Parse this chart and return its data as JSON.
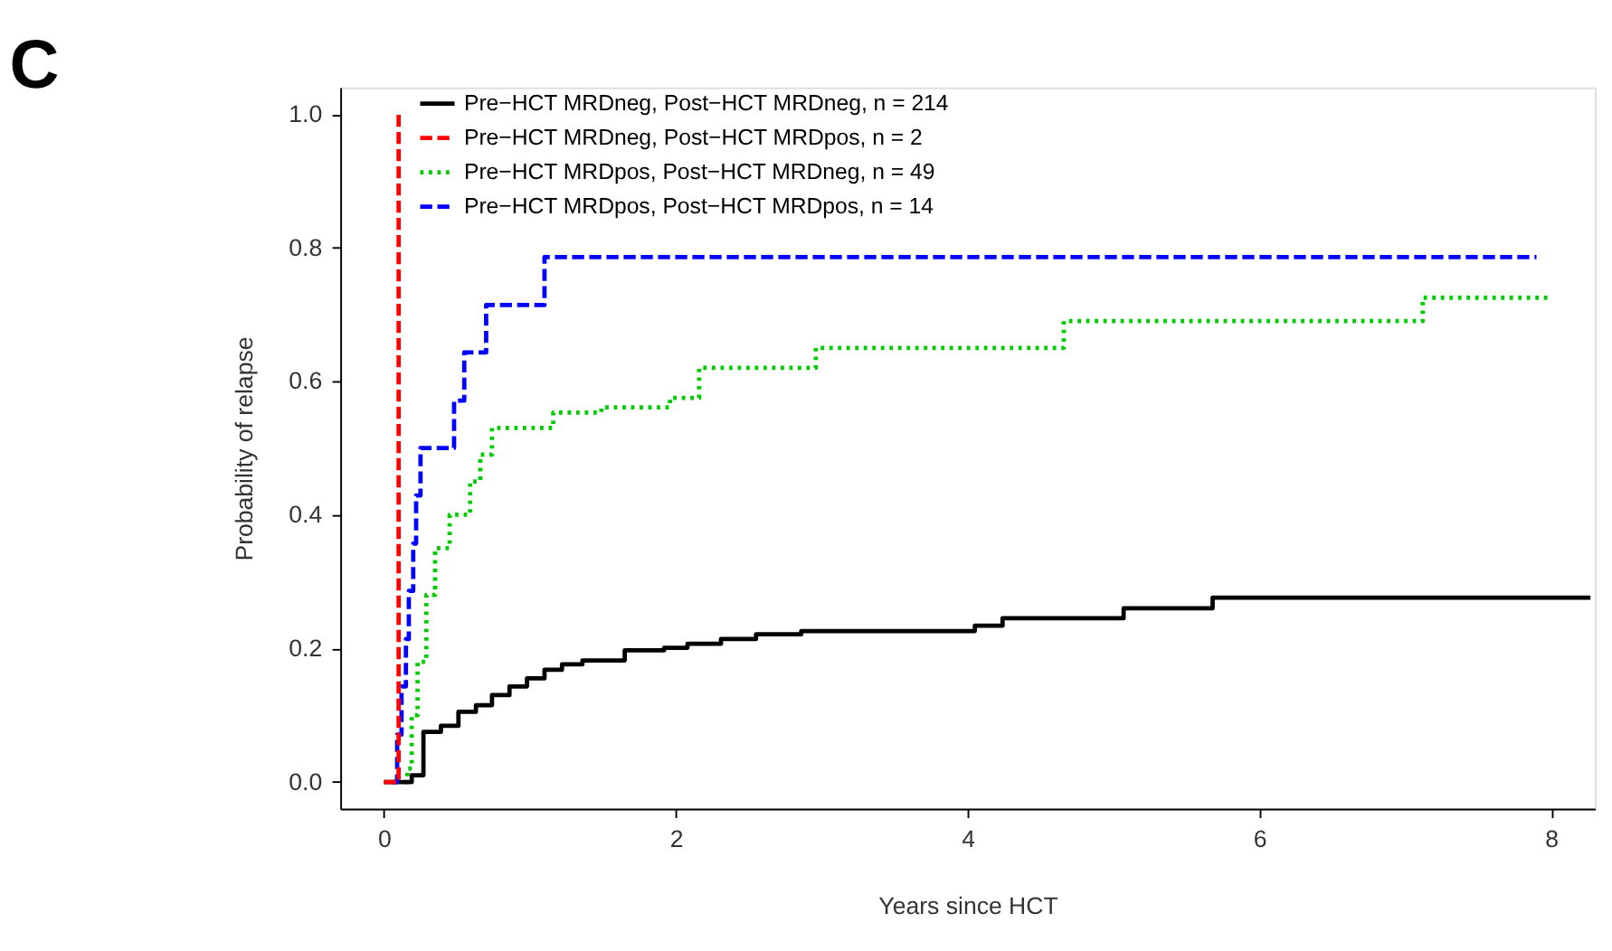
{
  "chart_data": {
    "type": "step",
    "title": "C",
    "xlabel": "Years since HCT",
    "ylabel": "Probability of relapse",
    "xlim": [
      -0.3,
      8.3
    ],
    "xticks": [
      0,
      2,
      4,
      6,
      8
    ],
    "ylim": [
      -0.04,
      1.04
    ],
    "yticks": [
      {
        "value": 0,
        "label": "0.0"
      },
      {
        "value": 0.2,
        "label": "0.2"
      },
      {
        "value": 0.4,
        "label": "0.4"
      },
      {
        "value": 0.6,
        "label": "0.6"
      },
      {
        "value": 0.8,
        "label": "0.8"
      },
      {
        "value": 1,
        "label": "1.0"
      }
    ],
    "grid": false,
    "legend": "top left",
    "marker": "none",
    "series": [
      {
        "name": "Pre−HCT MRDneg, Post−HCT MRDneg, n = 214",
        "color": "#000000",
        "line_style": "solid",
        "x": [
          0,
          0.19,
          0.27,
          0.39,
          0.51,
          0.63,
          0.74,
          0.86,
          0.98,
          1.1,
          1.22,
          1.36,
          1.65,
          1.92,
          2.08,
          2.31,
          2.55,
          2.86,
          4.05,
          4.24,
          5.07,
          5.68,
          8.27
        ],
        "values": [
          0,
          0.01,
          0.075,
          0.084,
          0.105,
          0.115,
          0.13,
          0.143,
          0.155,
          0.168,
          0.176,
          0.182,
          0.197,
          0.201,
          0.207,
          0.214,
          0.221,
          0.226,
          0.234,
          0.245,
          0.26,
          0.276,
          0.276
        ]
      },
      {
        "name": "Pre−HCT MRDneg, Post−HCT MRDpos, n = 2",
        "color": "#ff0000",
        "line_style": "dashed",
        "x": [
          0,
          0.1,
          0.1
        ],
        "values": [
          0,
          0,
          1
        ]
      },
      {
        "name": "Pre−HCT MRDpos, Post−HCT MRDneg, n = 49",
        "color": "#00cc00",
        "line_style": "dotted",
        "x": [
          0.14,
          0.16,
          0.19,
          0.23,
          0.29,
          0.35,
          0.45,
          0.59,
          0.66,
          0.74,
          1.16,
          1.49,
          1.96,
          2.16,
          2.96,
          4.66,
          7.12,
          8.0
        ],
        "values": [
          0,
          0.02,
          0.1,
          0.18,
          0.28,
          0.35,
          0.4,
          0.45,
          0.49,
          0.53,
          0.553,
          0.561,
          0.575,
          0.62,
          0.65,
          0.69,
          0.725,
          0.725
        ]
      },
      {
        "name": "Pre−HCT MRDpos, Post−HCT MRDpos, n = 14",
        "color": "#0000ff",
        "line_style": "dashed",
        "x": [
          0.06,
          0.09,
          0.12,
          0.15,
          0.17,
          0.2,
          0.22,
          0.25,
          0.48,
          0.55,
          0.7,
          1.1,
          7.9
        ],
        "values": [
          0,
          0.071,
          0.143,
          0.214,
          0.286,
          0.357,
          0.429,
          0.5,
          0.571,
          0.643,
          0.714,
          0.786,
          0.786
        ]
      }
    ]
  }
}
